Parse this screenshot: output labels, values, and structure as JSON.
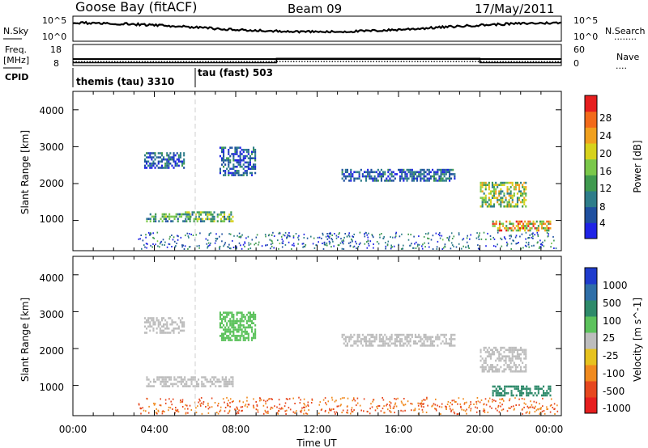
{
  "header": {
    "site": "Goose Bay (fitACF)",
    "beam": "Beam 09",
    "date": "17/May/2011"
  },
  "noise_panel": {
    "left_label": "N.Sky",
    "right_label": "N.Search",
    "y_ticks_left": [
      "10^5",
      "10^0"
    ],
    "y_ticks_right": [
      "10^5",
      "10^0"
    ],
    "right_legend_dots": "........"
  },
  "freq_panel": {
    "left_label_line1": "Freq.",
    "left_label_line2": "[MHz]",
    "left_ticks": [
      "18",
      "8"
    ],
    "right_ticks": [
      "60",
      "0"
    ],
    "right_label": "Nave",
    "right_legend_dots": "....",
    "nave_step": [
      {
        "from": 0,
        "to": 10,
        "value": 8
      },
      {
        "from": 10,
        "to": 20,
        "value": 20
      },
      {
        "from": 20,
        "to": 24,
        "value": 8
      }
    ]
  },
  "cpid": {
    "label": "CPID",
    "modes": [
      {
        "name": "themis (tau) 3310",
        "start_hour": 0
      },
      {
        "name": "tau (fast) 503",
        "start_hour": 6
      }
    ]
  },
  "x_axis": {
    "label": "Time UT",
    "ticks": [
      "00:00",
      "04:00",
      "08:00",
      "12:00",
      "16:00",
      "20:00",
      "00:00"
    ],
    "range_hours": [
      0,
      24
    ]
  },
  "power_panel": {
    "ylabel": "Slant Range [km]",
    "y_ticks": [
      "1000",
      "2000",
      "3000",
      "4000"
    ],
    "colorbar_label": "Power [dB]",
    "colorbar_ticks": [
      "4",
      "8",
      "12",
      "16",
      "20",
      "24",
      "28"
    ],
    "colors": [
      "#1f23e6",
      "#1f50a0",
      "#2e7d8a",
      "#3f9a4f",
      "#7ac84a",
      "#d7d21b",
      "#f0a01e",
      "#f26a1a",
      "#e61e1e"
    ]
  },
  "velocity_panel": {
    "ylabel": "Slant Range [km]",
    "y_ticks": [
      "1000",
      "2000",
      "3000",
      "4000"
    ],
    "colorbar_label": "Velocity [m s^-1]",
    "colorbar_ticks": [
      "1000",
      "500",
      "100",
      "25",
      "-25",
      "-100",
      "-500",
      "-1000"
    ],
    "colors": [
      "#1f3ccd",
      "#2f6fa8",
      "#2e8a6a",
      "#5cc25c",
      "#bdbdbd",
      "#e6c21e",
      "#f08a1e",
      "#e6471e",
      "#e61e1e"
    ]
  },
  "chart_data": [
    {
      "type": "heatmap",
      "title": "Power",
      "xlabel": "Time UT",
      "ylabel": "Slant Range [km]",
      "xlim": [
        0,
        24
      ],
      "ylim": [
        180,
        4500
      ],
      "z_label": "Power [dB]",
      "z_range": [
        0,
        30
      ],
      "regions": [
        {
          "t0": 3.5,
          "t1": 5.5,
          "r0": 2400,
          "r1": 2850,
          "z": 6
        },
        {
          "t0": 3.6,
          "t1": 5.8,
          "r0": 950,
          "r1": 1200,
          "z": 11
        },
        {
          "t0": 5.5,
          "t1": 7.9,
          "r0": 950,
          "r1": 1250,
          "z": 13
        },
        {
          "t0": 7.2,
          "t1": 9.0,
          "r0": 2200,
          "r1": 3000,
          "z": 6
        },
        {
          "t0": 13.2,
          "t1": 18.8,
          "r0": 2050,
          "r1": 2400,
          "z": 6
        },
        {
          "t0": 20.0,
          "t1": 22.3,
          "r0": 1350,
          "r1": 2050,
          "z": 15
        },
        {
          "t0": 20.6,
          "t1": 23.5,
          "r0": 700,
          "r1": 1000,
          "z": 20
        }
      ]
    },
    {
      "type": "heatmap",
      "title": "Velocity",
      "xlabel": "Time UT",
      "ylabel": "Slant Range [km]",
      "xlim": [
        0,
        24
      ],
      "ylim": [
        180,
        4500
      ],
      "z_label": "Velocity [m s^-1]",
      "z_range": [
        -1000,
        1000
      ],
      "regions": [
        {
          "t0": 3.5,
          "t1": 5.5,
          "r0": 2400,
          "r1": 2850,
          "z": 0
        },
        {
          "t0": 3.6,
          "t1": 7.9,
          "r0": 950,
          "r1": 1250,
          "z": 0
        },
        {
          "t0": 7.2,
          "t1": 9.0,
          "r0": 2200,
          "r1": 3000,
          "z": 60
        },
        {
          "t0": 13.2,
          "t1": 18.8,
          "r0": 2050,
          "r1": 2400,
          "z": 0
        },
        {
          "t0": 20.0,
          "t1": 22.3,
          "r0": 1350,
          "r1": 2050,
          "z": 0
        },
        {
          "t0": 20.6,
          "t1": 23.5,
          "r0": 700,
          "r1": 1000,
          "z": 250
        }
      ]
    }
  ]
}
